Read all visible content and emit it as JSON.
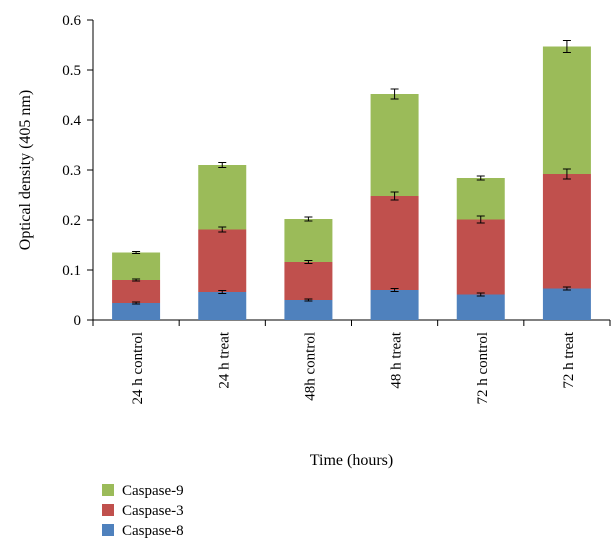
{
  "chart_data": {
    "type": "bar",
    "stacked": true,
    "title": "",
    "xlabel": "Time (hours)",
    "ylabel": "Optical density (405 nm)",
    "ylim": [
      0,
      0.6
    ],
    "yticks": [
      "0",
      "0.1",
      "0.2",
      "0.3",
      "0.4",
      "0.5",
      "0.6"
    ],
    "categories": [
      "24 h control",
      "24 h treat",
      "48h control",
      "48 h treat",
      "72 h control",
      "72 h treat"
    ],
    "series": [
      {
        "name": "Caspase-8",
        "color": "#4f81bd",
        "values": [
          0.034,
          0.056,
          0.04,
          0.06,
          0.051,
          0.063
        ],
        "errors": [
          0.002,
          0.003,
          0.002,
          0.003,
          0.003,
          0.003
        ]
      },
      {
        "name": "Caspase-3",
        "color": "#c0504d",
        "values": [
          0.046,
          0.125,
          0.076,
          0.188,
          0.15,
          0.229
        ],
        "errors": [
          0.002,
          0.005,
          0.003,
          0.008,
          0.007,
          0.01
        ]
      },
      {
        "name": "Caspase-9",
        "color": "#9bbb59",
        "values": [
          0.055,
          0.129,
          0.086,
          0.204,
          0.083,
          0.255
        ],
        "errors": [
          0.002,
          0.005,
          0.004,
          0.01,
          0.004,
          0.012
        ]
      }
    ],
    "legend": {
      "position": "bottom-left",
      "order": [
        "Caspase-9",
        "Caspase-3",
        "Caspase-8"
      ]
    },
    "grid": false
  }
}
